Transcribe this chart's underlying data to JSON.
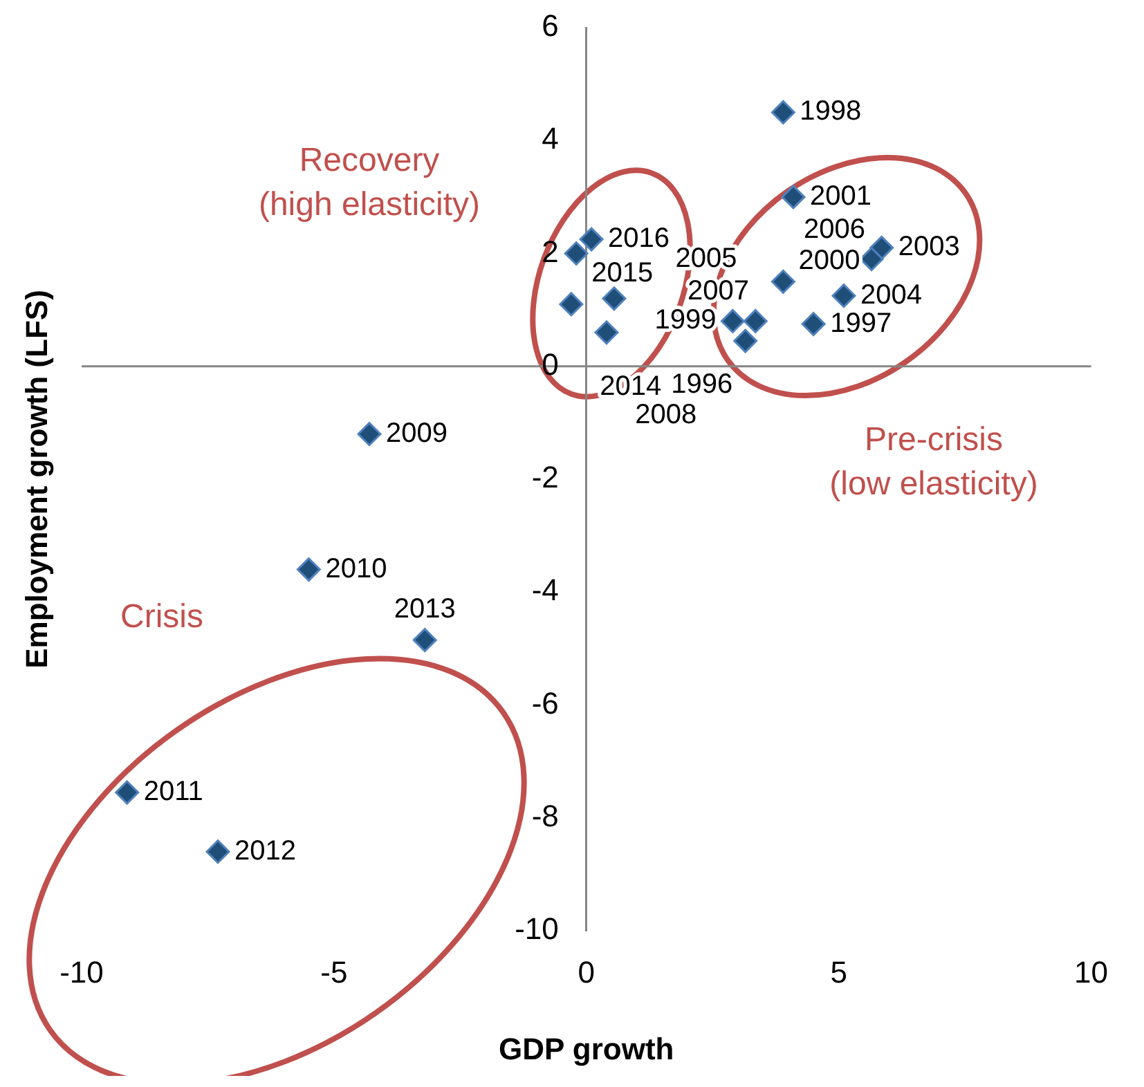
{
  "chart_data": {
    "type": "scatter",
    "xlabel": "GDP growth",
    "ylabel": "Employment growth (LFS)",
    "x": [
      3.9,
      4.1,
      5.85,
      5.65,
      3.9,
      5.1,
      4.5,
      3.35,
      2.9,
      3.15,
      0.1,
      -0.2,
      -0.3,
      0.55,
      0.4,
      -4.3,
      -5.5,
      -3.2,
      -9.1,
      -7.3
    ],
    "values": [
      4.5,
      3.0,
      2.1,
      1.9,
      1.5,
      1.25,
      0.75,
      0.8,
      0.8,
      0.45,
      2.25,
      2.0,
      1.1,
      1.2,
      0.6,
      -1.2,
      -3.6,
      -4.85,
      -7.55,
      -8.6
    ],
    "color": "#1f4e79",
    "marker": "diamond",
    "legend": false,
    "xlim": [
      -10,
      10
    ],
    "xticks": [
      -10,
      -5,
      0,
      5,
      10
    ],
    "ylim": [
      -10,
      6
    ],
    "yticks": [
      -10,
      -8,
      -6,
      -4,
      -2,
      0,
      2,
      4,
      6
    ],
    "annotations": [
      "Recovery\n(high elasticity)",
      "Pre-crisis\n(low elasticity)",
      "Crisis",
      {
        "text": "1998",
        "x": 3.9,
        "y": 4.5
      },
      {
        "text": "2001",
        "x": 4.1,
        "y": 3.0
      },
      {
        "text": "2003",
        "x": 5.85,
        "y": 2.1
      },
      {
        "text": "2006",
        "x": 5.65,
        "y": 1.9
      },
      {
        "text": "2000",
        "x": 3.9,
        "y": 1.5
      },
      {
        "text": "2004",
        "x": 5.1,
        "y": 1.25
      },
      {
        "text": "1997",
        "x": 4.5,
        "y": 0.75
      },
      {
        "text": "2007",
        "x": 3.35,
        "y": 0.8
      },
      {
        "text": "1999",
        "x": 2.9,
        "y": 0.8
      },
      {
        "text": "1996",
        "x": 3.15,
        "y": 0.45
      },
      {
        "text": "2016",
        "x": 0.1,
        "y": 2.25
      },
      {
        "text": "2015",
        "x": -0.2,
        "y": 2.0
      },
      {
        "text": "2014",
        "x": -0.3,
        "y": 1.1
      },
      {
        "text": "2005",
        "x": 0.55,
        "y": 1.2
      },
      {
        "text": "2008",
        "x": 0.4,
        "y": 0.6
      },
      {
        "text": "2009",
        "x": -4.3,
        "y": -1.2
      },
      {
        "text": "2010",
        "x": -5.5,
        "y": -3.6
      },
      {
        "text": "2013",
        "x": -3.2,
        "y": -4.85
      },
      {
        "text": "2011",
        "x": -9.1,
        "y": -7.55
      },
      {
        "text": "2012",
        "x": -7.3,
        "y": -8.6
      }
    ]
  }
}
